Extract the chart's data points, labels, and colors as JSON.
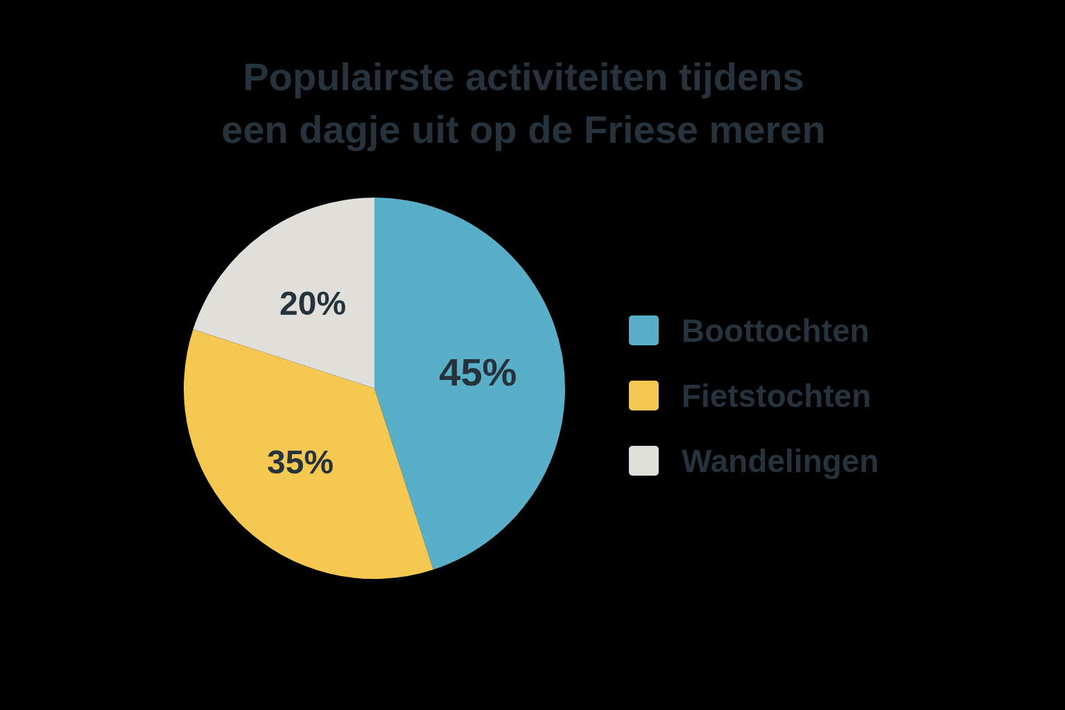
{
  "chart_data": {
    "type": "pie",
    "title": "Populairste activiteiten tijdens\neen dagje uit op de Friese meren",
    "categories": [
      "Boottochten",
      "Fietstochten",
      "Wandelingen"
    ],
    "values": [
      45,
      35,
      20
    ],
    "colors": [
      "#5aafc8",
      "#f4c851",
      "#e0dfda"
    ],
    "value_labels": [
      "45%",
      "35%",
      "20%"
    ],
    "legend": "right"
  }
}
